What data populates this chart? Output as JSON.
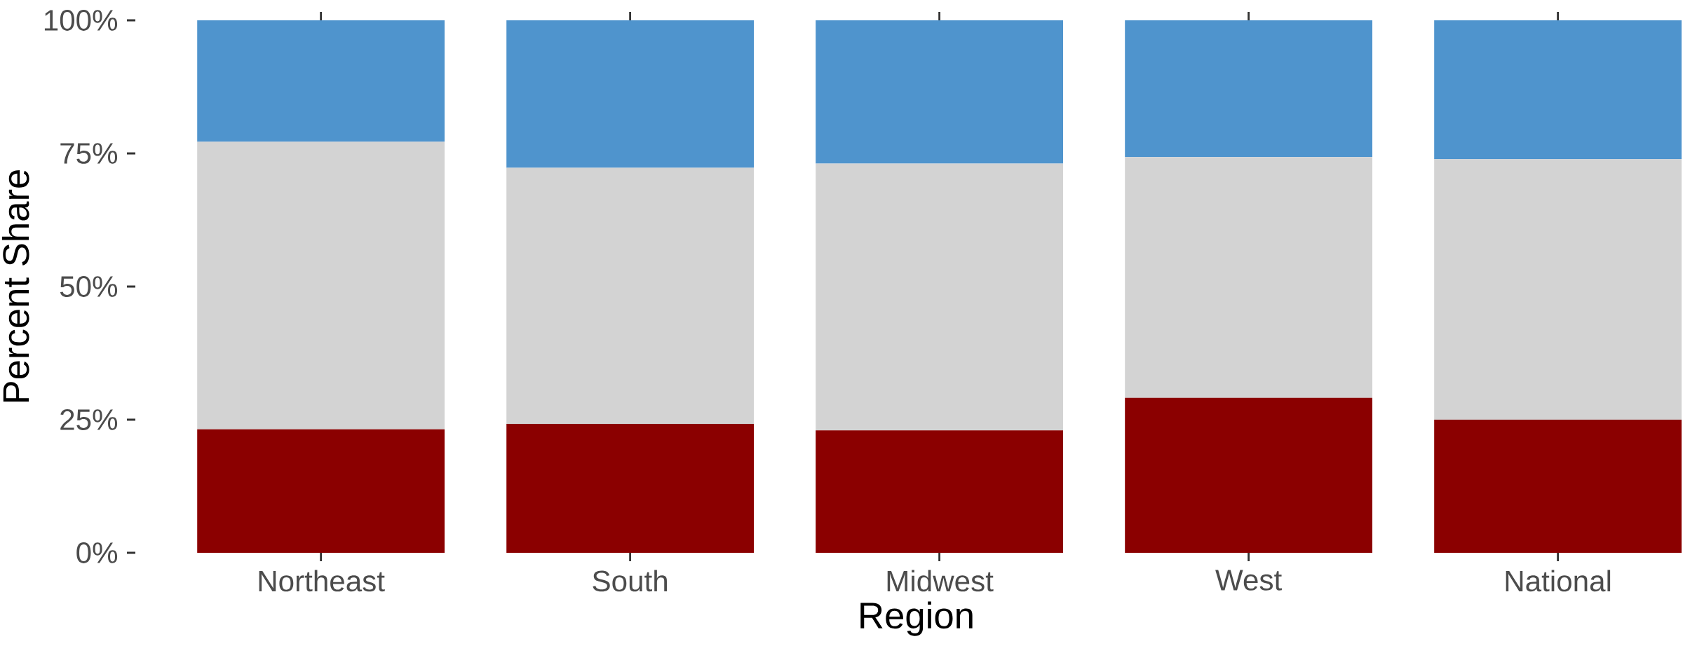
{
  "chart_data": {
    "type": "bar",
    "stacked": true,
    "xlabel": "Region",
    "ylabel": "Percent Share",
    "categories": [
      "Northeast",
      "South",
      "Midwest",
      "West",
      "National"
    ],
    "series": [
      {
        "color": "#8b0000",
        "values": [
          23.2,
          24.2,
          23.0,
          29.1,
          25.0
        ]
      },
      {
        "color": "#d3d3d3",
        "values": [
          54.0,
          48.1,
          50.1,
          45.2,
          48.9
        ]
      },
      {
        "color": "#4f94cd",
        "values": [
          22.8,
          27.7,
          26.9,
          25.7,
          26.1
        ]
      }
    ],
    "ylim": [
      0,
      100
    ],
    "yticks": [
      {
        "value": 0,
        "label": "0%"
      },
      {
        "value": 25,
        "label": "25%"
      },
      {
        "value": 50,
        "label": "50%"
      },
      {
        "value": 75,
        "label": "75%"
      },
      {
        "value": 100,
        "label": "100%"
      }
    ],
    "grid": false
  }
}
